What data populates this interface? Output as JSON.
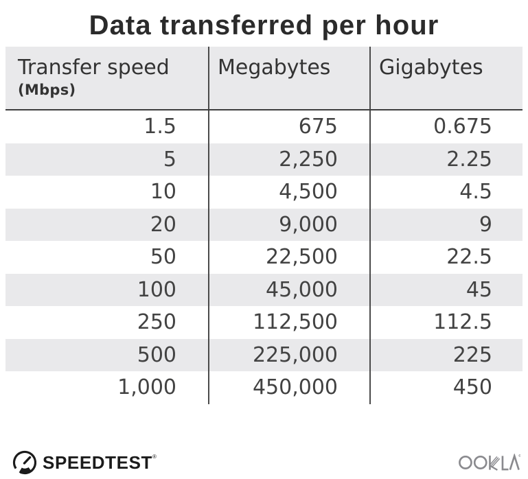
{
  "title": "Data transferred per hour",
  "colors": {
    "stripe": "#e9e9eb",
    "header_bg": "#e9e9eb",
    "divider": "#4a4a4a",
    "header_rule": "#3d3d3d",
    "text": "#424242",
    "title_text": "#2b2b2b",
    "ookla_gray": "#8a8a8e",
    "speedtest_black": "#1b1b1b"
  },
  "table_header": {
    "col1_line1": "Transfer speed",
    "col1_line2": "(Mbps)",
    "col2": "Megabytes",
    "col3": "Gigabytes"
  },
  "chart_data": {
    "type": "table",
    "title": "Data transferred per hour",
    "columns": [
      "Transfer speed (Mbps)",
      "Megabytes",
      "Gigabytes"
    ],
    "rows": [
      [
        "1.5",
        "675",
        "0.675"
      ],
      [
        "5",
        "2,250",
        "2.25"
      ],
      [
        "10",
        "4,500",
        "4.5"
      ],
      [
        "20",
        "9,000",
        "9"
      ],
      [
        "50",
        "22,500",
        "22.5"
      ],
      [
        "100",
        "45,000",
        "45"
      ],
      [
        "250",
        "112,500",
        "112.5"
      ],
      [
        "500",
        "225,000",
        "225"
      ],
      [
        "1,000",
        "450,000",
        "450"
      ]
    ]
  },
  "footer": {
    "speedtest_text": "SPEEDTEST",
    "speedtest_reg": "®",
    "ookla_text": "OOKLA"
  }
}
